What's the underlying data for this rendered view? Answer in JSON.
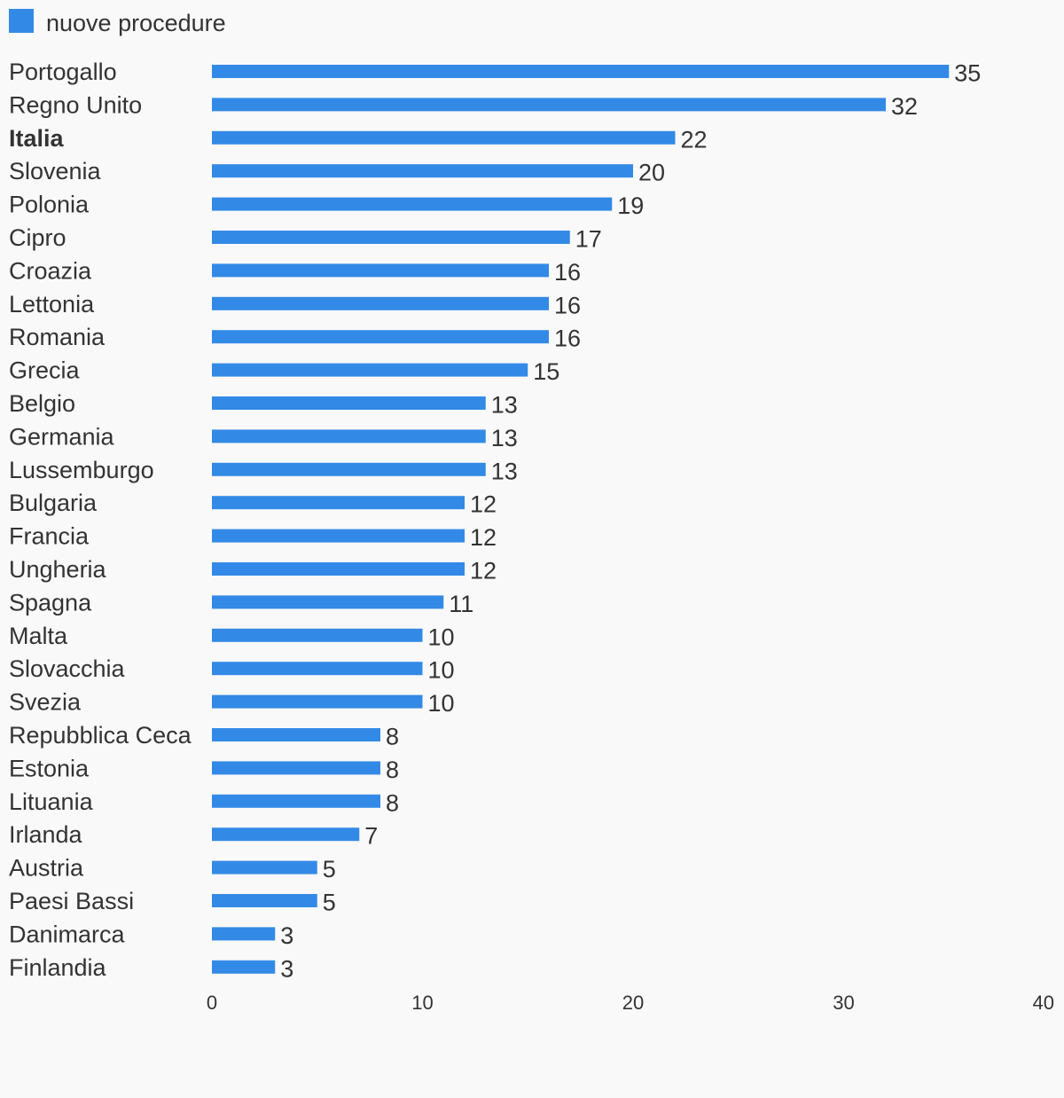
{
  "chart_data": {
    "type": "bar",
    "orientation": "horizontal",
    "series": [
      {
        "name": "nuove procedure",
        "color": "#338ae6",
        "values": [
          35,
          32,
          22,
          20,
          19,
          17,
          16,
          16,
          16,
          15,
          13,
          13,
          13,
          12,
          12,
          12,
          11,
          10,
          10,
          10,
          8,
          8,
          8,
          7,
          5,
          5,
          3,
          3
        ]
      }
    ],
    "categories": [
      "Portogallo",
      "Regno Unito",
      "Italia",
      "Slovenia",
      "Polonia",
      "Cipro",
      "Croazia",
      "Lettonia",
      "Romania",
      "Grecia",
      "Belgio",
      "Germania",
      "Lussemburgo",
      "Bulgaria",
      "Francia",
      "Ungheria",
      "Spagna",
      "Malta",
      "Slovacchia",
      "Svezia",
      "Repubblica Ceca",
      "Estonia",
      "Lituania",
      "Irlanda",
      "Austria",
      "Paesi Bassi",
      "Danimarca",
      "Finlandia"
    ],
    "highlighted_category": "Italia",
    "xlim": [
      0,
      40
    ],
    "xticks": [
      0,
      10,
      20,
      30,
      40
    ],
    "grid": false,
    "legend_position": "top-left",
    "title": "",
    "xlabel": "",
    "ylabel": ""
  },
  "colors": {
    "background": "#f9f9f9",
    "text": "#333333",
    "bar": "#338ae6"
  }
}
